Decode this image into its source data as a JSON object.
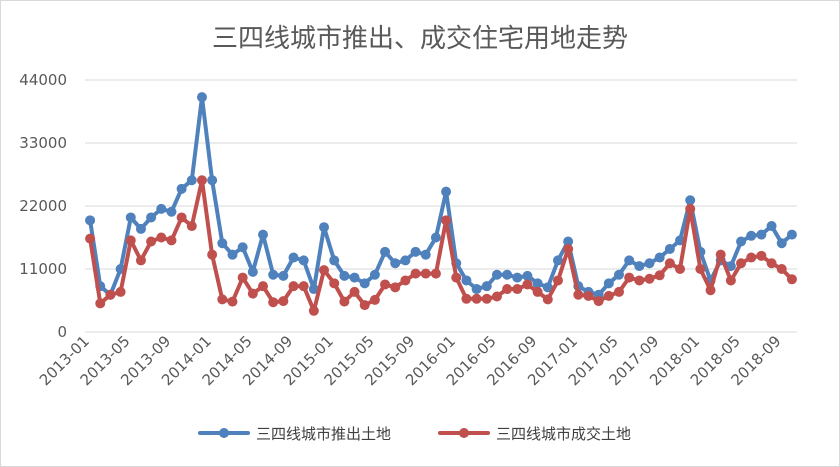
{
  "chart_data": {
    "type": "line",
    "title": "三四线城市推出、成交住宅用地走势",
    "xlabel": "",
    "ylabel": "",
    "ylim": [
      0,
      44000
    ],
    "yticks": [
      0,
      11000,
      22000,
      33000,
      44000
    ],
    "ytick_labels": [
      "0",
      "11000",
      "22000",
      "33000",
      "44000"
    ],
    "xtick_labels": [
      "2013-01",
      "2013-05",
      "2013-09",
      "2014-01",
      "2014-05",
      "2014-09",
      "2015-01",
      "2015-05",
      "2015-09",
      "2016-01",
      "2016-05",
      "2016-09",
      "2017-01",
      "2017-05",
      "2017-09",
      "2018-01",
      "2018-05",
      "2018-09"
    ],
    "x": [
      "2013-01",
      "2013-02",
      "2013-03",
      "2013-04",
      "2013-05",
      "2013-06",
      "2013-07",
      "2013-08",
      "2013-09",
      "2013-10",
      "2013-11",
      "2013-12",
      "2014-01",
      "2014-02",
      "2014-03",
      "2014-04",
      "2014-05",
      "2014-06",
      "2014-07",
      "2014-08",
      "2014-09",
      "2014-10",
      "2014-11",
      "2014-12",
      "2015-01",
      "2015-02",
      "2015-03",
      "2015-04",
      "2015-05",
      "2015-06",
      "2015-07",
      "2015-08",
      "2015-09",
      "2015-10",
      "2015-11",
      "2015-12",
      "2016-01",
      "2016-02",
      "2016-03",
      "2016-04",
      "2016-05",
      "2016-06",
      "2016-07",
      "2016-08",
      "2016-09",
      "2016-10",
      "2016-11",
      "2016-12",
      "2017-01",
      "2017-02",
      "2017-03",
      "2017-04",
      "2017-05",
      "2017-06",
      "2017-07",
      "2017-08",
      "2017-09",
      "2017-10",
      "2017-11",
      "2017-12",
      "2018-01",
      "2018-02",
      "2018-03",
      "2018-04",
      "2018-05",
      "2018-06",
      "2018-07",
      "2018-08",
      "2018-09",
      "2018-10"
    ],
    "series": [
      {
        "name": "三四线城市推出土地",
        "color": "#4f81bd",
        "values": [
          19500,
          8000,
          6500,
          11000,
          20000,
          18000,
          20000,
          21500,
          21000,
          25000,
          26500,
          41000,
          26500,
          15500,
          13500,
          14800,
          10500,
          17000,
          10000,
          9800,
          13000,
          12500,
          7500,
          18300,
          12500,
          9800,
          9500,
          8500,
          10000,
          14000,
          12000,
          12500,
          14000,
          13500,
          16500,
          24500,
          12000,
          9000,
          7500,
          8000,
          10000,
          10000,
          9500,
          9800,
          8500,
          7800,
          12500,
          15800,
          8000,
          7000,
          6500,
          8500,
          10000,
          12500,
          11500,
          12000,
          13000,
          14500,
          16000,
          23000,
          14000,
          9000,
          12500,
          11500,
          15800,
          16800,
          17000,
          18500,
          15500,
          17000
        ]
      },
      {
        "name": "三四线城市成交土地",
        "color": "#c0504d",
        "values": [
          16300,
          5000,
          6500,
          7000,
          16000,
          12500,
          15800,
          16500,
          16000,
          20000,
          18500,
          26500,
          13500,
          5700,
          5300,
          9500,
          6700,
          8000,
          5200,
          5400,
          8000,
          8000,
          3700,
          10800,
          8500,
          5300,
          7000,
          4700,
          5600,
          8300,
          7800,
          9000,
          10200,
          10200,
          10200,
          19500,
          9500,
          5800,
          5800,
          5800,
          6200,
          7500,
          7500,
          8300,
          7000,
          5700,
          9000,
          14500,
          6500,
          6300,
          5400,
          6300,
          7000,
          9500,
          9000,
          9300,
          9900,
          12000,
          11000,
          21500,
          11000,
          7300,
          13500,
          9000,
          12000,
          13000,
          13300,
          12000,
          11000,
          9200
        ]
      }
    ],
    "grid": true,
    "legend": "bottom"
  }
}
